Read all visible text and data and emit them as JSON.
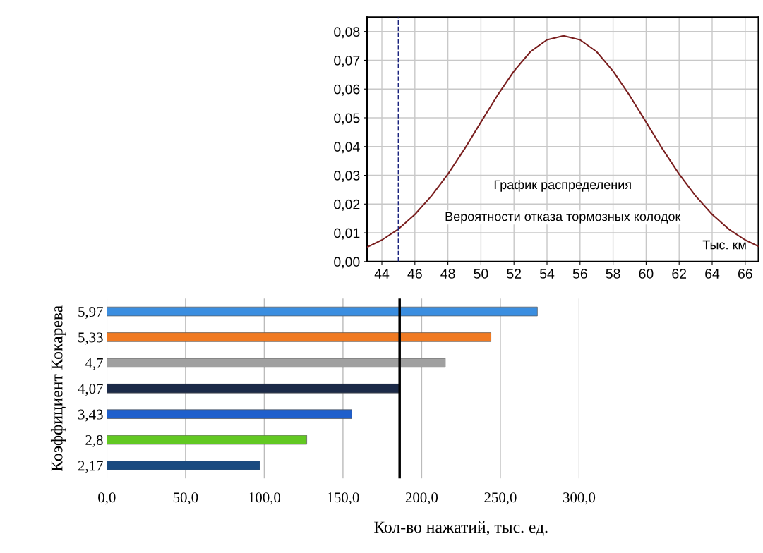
{
  "chart_data": [
    {
      "type": "line",
      "xlabel": "Тыс. км",
      "x": [
        43.1,
        44,
        45,
        46,
        47,
        48,
        49,
        50,
        51,
        52,
        53,
        54,
        55,
        56,
        57,
        58,
        59,
        60,
        61,
        62,
        63,
        64,
        65,
        66,
        66.8
      ],
      "series": [
        {
          "color": "#7a1f1f",
          "values": [
            0.005,
            0.0075,
            0.0113,
            0.0164,
            0.0228,
            0.0304,
            0.0391,
            0.0485,
            0.0578,
            0.0662,
            0.073,
            0.0771,
            0.0785,
            0.0771,
            0.073,
            0.0662,
            0.0578,
            0.0485,
            0.0391,
            0.0304,
            0.0228,
            0.0164,
            0.0113,
            0.0075,
            0.0053
          ]
        }
      ],
      "xlim": [
        43.1,
        66.8
      ],
      "xticks": [
        44,
        46,
        48,
        50,
        52,
        54,
        56,
        58,
        60,
        62,
        64,
        66
      ],
      "ylim": [
        0,
        0.085
      ],
      "yticks": [
        {
          "value": 0,
          "label": "0,00"
        },
        {
          "value": 0.01,
          "label": "0,01"
        },
        {
          "value": 0.02,
          "label": "0,02"
        },
        {
          "value": 0.03,
          "label": "0,03"
        },
        {
          "value": 0.04,
          "label": "0,04"
        },
        {
          "value": 0.05,
          "label": "0,05"
        },
        {
          "value": 0.06,
          "label": "0,06"
        },
        {
          "value": 0.07,
          "label": "0,07"
        },
        {
          "value": 0.08,
          "label": "0,08"
        }
      ],
      "grid": true,
      "marker": "none",
      "line_style": "solid",
      "ref_lines": [
        {
          "axis": "x",
          "value": 45,
          "color": "#1a237e",
          "line_style": "dashed"
        }
      ],
      "annotations": [
        "График распределения",
        "Вероятности отказа тормозных колодок"
      ]
    },
    {
      "type": "bar",
      "orientation": "horizontal",
      "ylabel": "Коэффициент Кокарева",
      "xlabel": "Кол-во нажатий, тыс. ед.",
      "categories": [
        "5,97",
        "5,33",
        "4,7",
        "4,07",
        "3,43",
        "2,8",
        "2,17"
      ],
      "values": [
        273.5,
        244,
        215,
        185.6,
        155.6,
        127,
        97.3
      ],
      "colors": [
        "#3b8ee0",
        "#f07a22",
        "#a0a0a0",
        "#1c2a48",
        "#1f5fcc",
        "#62c822",
        "#1a4a80"
      ],
      "xlim": [
        0,
        300
      ],
      "xticks": [
        {
          "value": 0,
          "label": "0,0"
        },
        {
          "value": 50,
          "label": "50,0"
        },
        {
          "value": 100,
          "label": "100,0"
        },
        {
          "value": 150,
          "label": "150,0"
        },
        {
          "value": 200,
          "label": "200,0"
        },
        {
          "value": 250,
          "label": "250,0"
        },
        {
          "value": 300,
          "label": "300,0"
        }
      ],
      "grid": "x",
      "ref_lines": [
        {
          "axis": "x",
          "value": 186,
          "color": "#000000",
          "line_style": "solid"
        }
      ]
    }
  ]
}
